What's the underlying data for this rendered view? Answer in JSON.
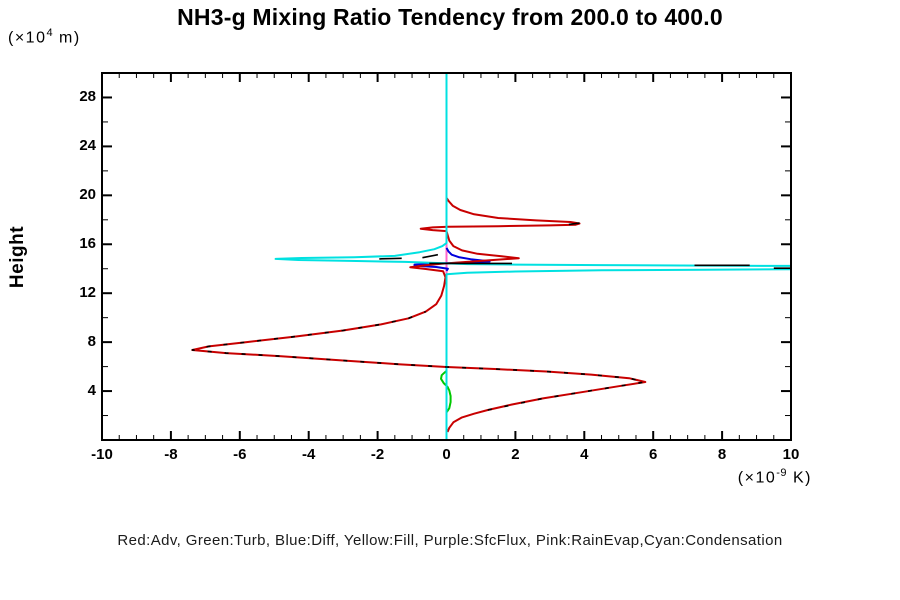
{
  "page": {
    "title": "NH3-g Mixing Ratio Tendency from 200.0 to 400.0",
    "y_axis_title": "Height",
    "y_axis_unit": {
      "open": "(×10",
      "sup": "4",
      "close": " m)"
    },
    "x_axis_unit": {
      "open": "(×10",
      "sup": "-9",
      "close": " K)"
    },
    "legend_text": "Red:Adv, Green:Turb, Blue:Diff, Yellow:Fill, Purple:SfcFlux, Pink:RainEvap,Cyan:Condensation"
  },
  "chart_data": {
    "type": "line",
    "title": "NH3-g Mixing Ratio Tendency from 200.0 to 400.0",
    "xlabel": "(×10^-9 K)",
    "ylabel": "Height (×10^4 m)",
    "xlim": [
      -10,
      10
    ],
    "ylim": [
      0,
      30
    ],
    "grid": false,
    "legend_position": "bottom-text-line",
    "orientation": "vertical-profile: x = tendency value, y = height",
    "x_tick_values": [
      -10,
      -8,
      -6,
      -4,
      -2,
      0,
      2,
      4,
      6,
      8,
      10
    ],
    "x_tick_labels": [
      "-10",
      "-8",
      "-6",
      "-4",
      "-2",
      "0",
      "2",
      "4",
      "6",
      "8",
      "10"
    ],
    "x_minor_step": 0.5,
    "y_tick_values": [
      4,
      8,
      12,
      16,
      20,
      24,
      28
    ],
    "y_tick_labels": [
      "4",
      "8",
      "12",
      "16",
      "20",
      "24",
      "28"
    ],
    "y_minor_step": 2,
    "frame_color": "#000000",
    "series": [
      {
        "name": "Fill",
        "color": "#e6e600",
        "width": 2,
        "dash": "",
        "segments": [
          [
            [
              0,
              0.05
            ],
            [
              0,
              29.95
            ]
          ]
        ]
      },
      {
        "name": "SfcFlux",
        "color": "#9900cc",
        "width": 2,
        "dash": "",
        "segments": [
          [
            [
              0,
              0.05
            ],
            [
              0,
              29.95
            ]
          ]
        ]
      },
      {
        "name": "RainEvap",
        "color": "#ff66cc",
        "width": 2,
        "dash": "",
        "segments": [
          [
            [
              0,
              0.05
            ],
            [
              0,
              29.95
            ]
          ]
        ]
      },
      {
        "name": "Turb",
        "color": "#00c800",
        "width": 2,
        "dash": "",
        "segments": [
          [
            [
              0,
              2.25
            ],
            [
              0.08,
              2.6
            ],
            [
              0.12,
              3.1
            ],
            [
              0.12,
              3.6
            ],
            [
              0.08,
              4.05
            ],
            [
              0.03,
              4.35
            ],
            [
              -0.08,
              4.65
            ],
            [
              -0.16,
              5.0
            ],
            [
              -0.14,
              5.3
            ],
            [
              -0.06,
              5.5
            ],
            [
              0,
              5.65
            ]
          ]
        ]
      },
      {
        "name": "Diff",
        "color": "#0000dc",
        "width": 2,
        "dash": "",
        "segments": [
          [
            [
              0,
              13.82
            ],
            [
              0.04,
              14.0
            ],
            [
              -0.3,
              14.14
            ],
            [
              -0.93,
              14.26
            ],
            [
              -0.93,
              14.34
            ],
            [
              -0.4,
              14.42
            ],
            [
              0.1,
              14.46
            ],
            [
              0.8,
              14.52
            ],
            [
              1.25,
              14.58
            ],
            [
              1.1,
              14.66
            ],
            [
              0.7,
              14.78
            ],
            [
              0.35,
              14.95
            ],
            [
              0.15,
              15.15
            ],
            [
              0.06,
              15.4
            ],
            [
              0,
              15.7
            ]
          ]
        ]
      },
      {
        "name": "Adv",
        "color": "#c80000",
        "width": 2,
        "dash": "",
        "segments": [
          [
            [
              0.03,
              0.65
            ],
            [
              0.08,
              1.0
            ],
            [
              0.2,
              1.45
            ],
            [
              0.45,
              1.85
            ],
            [
              0.8,
              2.15
            ],
            [
              1.2,
              2.45
            ],
            [
              1.9,
              2.9
            ],
            [
              2.8,
              3.4
            ],
            [
              3.9,
              3.9
            ],
            [
              5.0,
              4.4
            ],
            [
              5.77,
              4.74
            ],
            [
              5.3,
              5.05
            ],
            [
              4.2,
              5.35
            ],
            [
              2.9,
              5.6
            ],
            [
              1.4,
              5.8
            ],
            [
              0.0,
              5.97
            ],
            [
              -1.4,
              6.2
            ],
            [
              -3.0,
              6.5
            ],
            [
              -4.8,
              6.85
            ],
            [
              -6.4,
              7.1
            ],
            [
              -7.38,
              7.36
            ],
            [
              -6.9,
              7.65
            ],
            [
              -5.8,
              8.0
            ],
            [
              -4.4,
              8.45
            ],
            [
              -3.0,
              8.95
            ],
            [
              -1.9,
              9.45
            ],
            [
              -1.1,
              9.95
            ],
            [
              -0.6,
              10.5
            ],
            [
              -0.3,
              11.1
            ],
            [
              -0.15,
              11.8
            ],
            [
              -0.07,
              12.6
            ],
            [
              -0.03,
              13.3
            ],
            [
              -0.1,
              13.8
            ],
            [
              -0.6,
              13.98
            ],
            [
              -1.05,
              14.12
            ],
            [
              -0.6,
              14.28
            ],
            [
              -0.15,
              14.4
            ],
            [
              0.3,
              14.5
            ],
            [
              1.2,
              14.68
            ],
            [
              2.1,
              14.86
            ],
            [
              1.6,
              15.02
            ],
            [
              0.9,
              15.22
            ],
            [
              0.45,
              15.5
            ],
            [
              0.2,
              15.85
            ],
            [
              0.08,
              16.3
            ],
            [
              0.03,
              16.8
            ],
            [
              0.0,
              17.08
            ],
            [
              -0.4,
              17.16
            ],
            [
              -0.75,
              17.27
            ],
            [
              -0.4,
              17.38
            ],
            [
              0.05,
              17.44
            ],
            [
              1.5,
              17.48
            ],
            [
              3.0,
              17.54
            ],
            [
              3.75,
              17.6
            ],
            [
              3.86,
              17.7
            ],
            [
              3.6,
              17.82
            ],
            [
              2.6,
              17.95
            ],
            [
              1.5,
              18.15
            ],
            [
              0.8,
              18.45
            ],
            [
              0.4,
              18.8
            ],
            [
              0.18,
              19.15
            ],
            [
              0.07,
              19.5
            ],
            [
              0.0,
              19.8
            ]
          ]
        ]
      },
      {
        "name": "Condensation",
        "color": "#00e1e1",
        "width": 2,
        "dash": "",
        "segments": [
          [
            [
              0,
              0
            ],
            [
              0,
              13.55
            ],
            [
              0.6,
              13.67
            ],
            [
              2.0,
              13.77
            ],
            [
              4.5,
              13.87
            ],
            [
              7.5,
              13.92
            ],
            [
              10.5,
              13.97
            ],
            [
              10.5,
              14.22
            ],
            [
              7.5,
              14.26
            ],
            [
              4.5,
              14.3
            ],
            [
              2.0,
              14.34
            ],
            [
              0.6,
              14.38
            ],
            [
              0.05,
              14.44
            ],
            [
              -1.2,
              14.56
            ],
            [
              -2.8,
              14.64
            ],
            [
              -4.3,
              14.71
            ],
            [
              -4.96,
              14.8
            ],
            [
              -4.2,
              14.88
            ],
            [
              -2.67,
              14.94
            ],
            [
              -1.5,
              15.05
            ],
            [
              -0.78,
              15.35
            ],
            [
              -0.35,
              15.6
            ],
            [
              -0.12,
              15.85
            ],
            [
              0,
              16.1
            ],
            [
              0,
              30
            ]
          ]
        ]
      },
      {
        "name": "black-overlay-dashed",
        "color": "#000000",
        "width": 1.6,
        "dash": "4 13",
        "segments": [
          [
            [
              1.2,
              2.45
            ],
            [
              2.8,
              3.4
            ],
            [
              3.9,
              3.9
            ],
            [
              5.0,
              4.4
            ],
            [
              5.77,
              4.74
            ],
            [
              5.3,
              5.05
            ],
            [
              4.2,
              5.35
            ],
            [
              2.9,
              5.6
            ],
            [
              1.4,
              5.8
            ],
            [
              0.0,
              5.97
            ],
            [
              -1.4,
              6.2
            ],
            [
              -3.0,
              6.5
            ],
            [
              -4.8,
              6.85
            ],
            [
              -6.4,
              7.1
            ],
            [
              -7.38,
              7.36
            ],
            [
              -6.9,
              7.65
            ],
            [
              -5.8,
              8.0
            ],
            [
              -4.4,
              8.45
            ],
            [
              -3.0,
              8.95
            ],
            [
              -1.9,
              9.45
            ],
            [
              -1.1,
              9.95
            ],
            [
              -0.6,
              10.5
            ]
          ]
        ]
      },
      {
        "name": "black-overlay-solid",
        "color": "#000000",
        "width": 1.6,
        "dash": "",
        "segments": [
          [
            [
              -1.95,
              14.8
            ],
            [
              -1.3,
              14.85
            ]
          ],
          [
            [
              -0.7,
              14.9
            ],
            [
              -0.25,
              15.15
            ]
          ],
          [
            [
              -0.5,
              14.44
            ],
            [
              1.9,
              14.44
            ]
          ],
          [
            [
              7.2,
              14.28
            ],
            [
              8.8,
              14.28
            ]
          ],
          [
            [
              9.5,
              14.04
            ],
            [
              10.0,
              14.04
            ]
          ],
          [
            [
              3.55,
              17.62
            ],
            [
              3.86,
              17.73
            ]
          ]
        ]
      }
    ],
    "legend_note": "Red:Adv, Green:Turb, Blue:Diff, Yellow:Fill, Purple:SfcFlux, Pink:RainEvap,Cyan:Condensation"
  }
}
